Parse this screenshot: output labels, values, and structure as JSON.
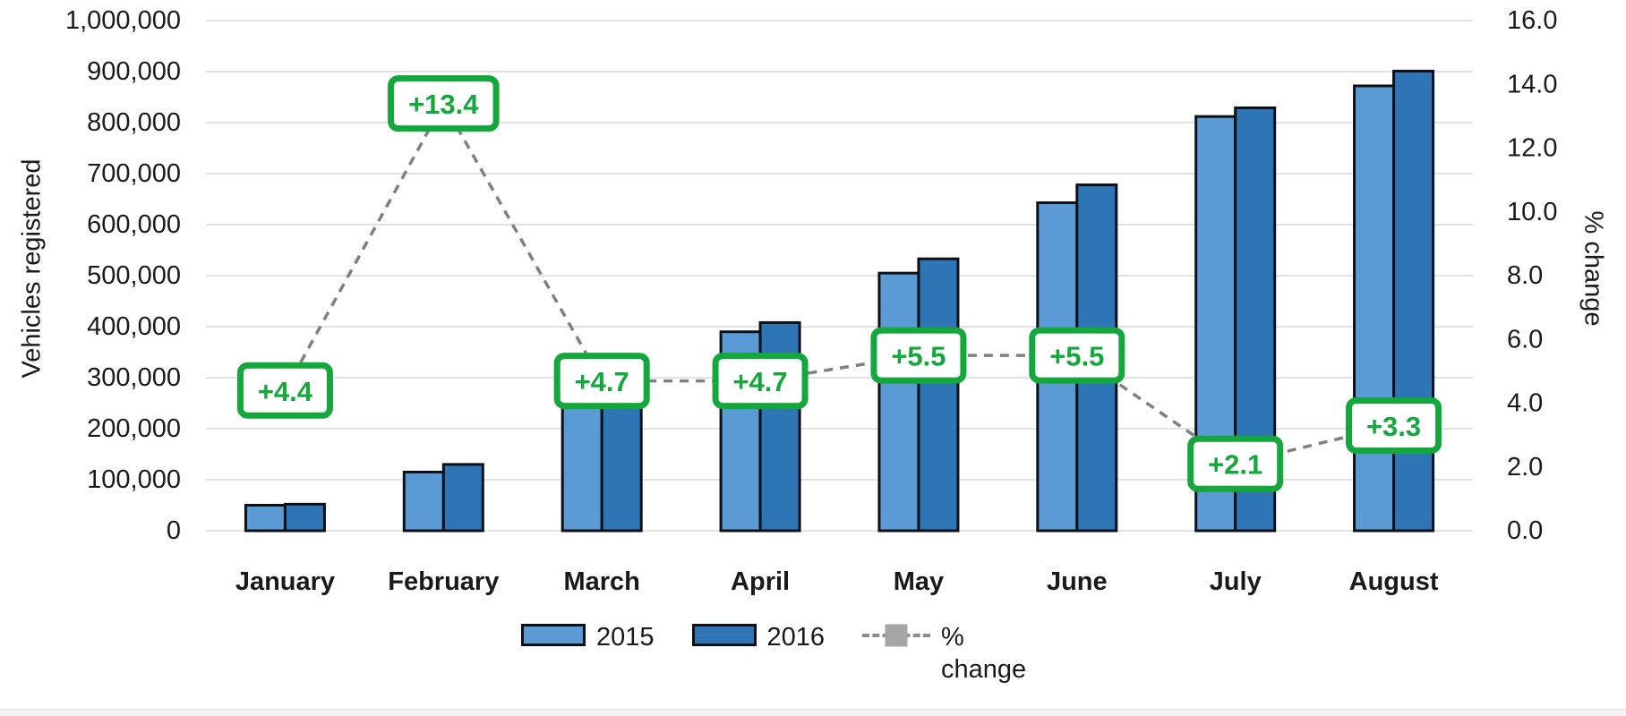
{
  "chart_data": {
    "type": "bar",
    "subtype": "grouped-bars-with-dashed-line-overlay",
    "title": "",
    "categories": [
      "January",
      "February",
      "March",
      "April",
      "May",
      "June",
      "July",
      "August"
    ],
    "series": [
      {
        "name": "2015",
        "type": "bar",
        "axis": "left",
        "color": "#5B9BD5",
        "values": [
          50000,
          115000,
          250000,
          390000,
          505000,
          643000,
          812000,
          872000
        ]
      },
      {
        "name": "2016",
        "type": "bar",
        "axis": "left",
        "color": "#2E75B6",
        "values": [
          52000,
          130000,
          262000,
          408000,
          533000,
          678000,
          829000,
          901000
        ]
      },
      {
        "name": "% change",
        "type": "line",
        "axis": "right",
        "color": "#808080",
        "dashed": true,
        "values": [
          4.4,
          13.4,
          4.7,
          4.7,
          5.5,
          5.5,
          2.1,
          3.3
        ],
        "point_labels": [
          "+4.4",
          "+13.4",
          "+4.7",
          "+4.7",
          "+5.5",
          "+5.5",
          "+2.1",
          "+3.3"
        ]
      }
    ],
    "left_axis": {
      "title": "Vehicles registered",
      "min": 0,
      "max": 1000000,
      "step": 100000,
      "tick_labels_top_to_bottom": [
        "1,000,000",
        "900,000",
        "800,000",
        "700,000",
        "600,000",
        "500,000",
        "400,000",
        "300,000",
        "200,000",
        "100,000",
        "0"
      ]
    },
    "right_axis": {
      "title": "% change",
      "min": 0,
      "max": 16,
      "step": 2,
      "tick_labels_top_to_bottom": [
        "16.0",
        "14.0",
        "12.0",
        "10.0",
        "8.0",
        "6.0",
        "4.0",
        "2.0",
        "0.0"
      ]
    },
    "legend": {
      "position": "bottom",
      "items": [
        {
          "label": "2015",
          "marker": "bar-swatch",
          "color": "#5B9BD5"
        },
        {
          "label": "2016",
          "marker": "bar-swatch",
          "color": "#2E75B6"
        },
        {
          "label": "% change",
          "marker": "dashed-line-square",
          "color": "#a6a6a6"
        }
      ]
    },
    "annotation_style": {
      "box_border_color": "#14A73C",
      "box_fill": "#ffffff",
      "text_color": "#14A73C"
    },
    "grid": true,
    "gridline_color": "#d9d9d9",
    "bar_border_color": "#0d1117",
    "tick_text_color": "#1a1a1a"
  }
}
